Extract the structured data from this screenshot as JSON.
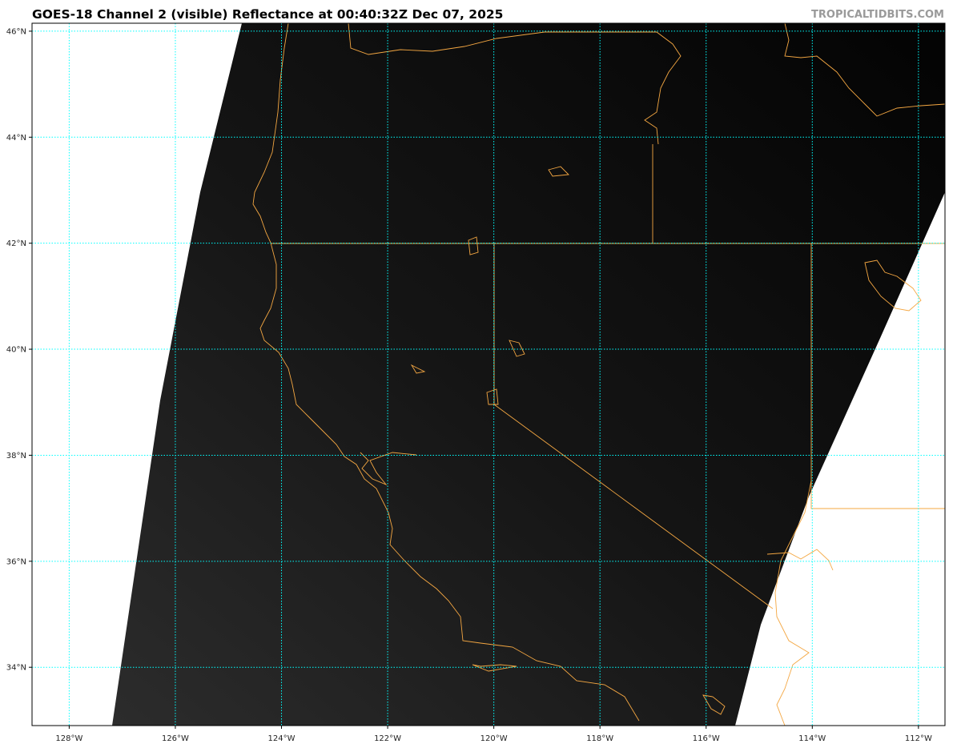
{
  "title": "GOES-18 Channel 2 (visible) Reflectance at 00:40:32Z Dec 07, 2025",
  "credit": "TROPICALTIDBITS.COM",
  "map": {
    "projection": "equirectangular",
    "lon_range": [
      -128.7,
      -111.5
    ],
    "lat_range": [
      32.9,
      46.15
    ],
    "gridline_color": "#00ffff",
    "coastline_color": "#f4a742",
    "lon_ticks": [
      {
        "value": -128,
        "label": "128°W"
      },
      {
        "value": -126,
        "label": "126°W"
      },
      {
        "value": -124,
        "label": "124°W"
      },
      {
        "value": -122,
        "label": "122°W"
      },
      {
        "value": -120,
        "label": "120°W"
      },
      {
        "value": -118,
        "label": "118°W"
      },
      {
        "value": -116,
        "label": "116°W"
      },
      {
        "value": -114,
        "label": "114°W"
      },
      {
        "value": -112,
        "label": "112°W"
      }
    ],
    "lat_ticks": [
      {
        "value": 46,
        "label": "46°N"
      },
      {
        "value": 44,
        "label": "44°N"
      },
      {
        "value": 42,
        "label": "42°N"
      },
      {
        "value": 40,
        "label": "40°N"
      },
      {
        "value": 38,
        "label": "38°N"
      },
      {
        "value": 36,
        "label": "36°N"
      },
      {
        "value": 34,
        "label": "34°N"
      }
    ]
  }
}
